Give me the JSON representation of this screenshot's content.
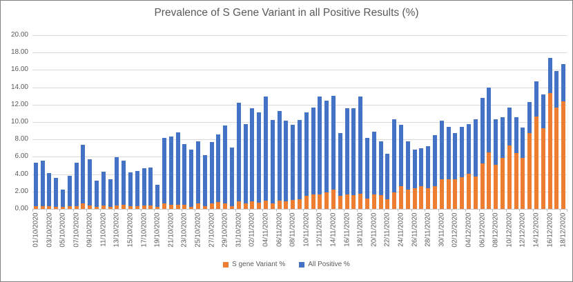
{
  "chart_data": {
    "type": "bar",
    "title": "Prevalence of S Gene Variant in all Positive Results (%)",
    "ylim": [
      0,
      20
    ],
    "y_tick_step": 2,
    "y_tick_labels": [
      "0.00",
      "2.00",
      "4.00",
      "6.00",
      "8.00",
      "10.00",
      "12.00",
      "14.00",
      "16.00",
      "18.00",
      "20.00"
    ],
    "x_label_interval": 2,
    "grid": true,
    "legend_position": "bottom",
    "bar_style": "S gene Variant % drawn in front of All Positive % (100% overlap)",
    "categories": [
      "01/10/2020",
      "02/10/2020",
      "03/10/2020",
      "04/10/2020",
      "05/10/2020",
      "06/10/2020",
      "07/10/2020",
      "08/10/2020",
      "09/10/2020",
      "10/10/2020",
      "11/10/2020",
      "12/10/2020",
      "13/10/2020",
      "14/10/2020",
      "15/10/2020",
      "16/10/2020",
      "17/10/2020",
      "18/10/2020",
      "19/10/2020",
      "20/10/2020",
      "21/10/2020",
      "22/10/2020",
      "23/10/2020",
      "24/10/2020",
      "25/10/2020",
      "26/10/2020",
      "27/10/2020",
      "28/10/2020",
      "29/10/2020",
      "30/10/2020",
      "31/10/2020",
      "01/11/2020",
      "02/11/2020",
      "03/11/2020",
      "04/11/2020",
      "05/11/2020",
      "06/11/2020",
      "07/11/2020",
      "08/11/2020",
      "09/11/2020",
      "10/11/2020",
      "11/11/2020",
      "12/11/2020",
      "13/11/2020",
      "14/11/2020",
      "15/11/2020",
      "16/11/2020",
      "17/11/2020",
      "18/11/2020",
      "19/11/2020",
      "20/11/2020",
      "21/11/2020",
      "22/11/2020",
      "23/11/2020",
      "24/11/2020",
      "25/11/2020",
      "26/11/2020",
      "27/11/2020",
      "28/11/2020",
      "29/11/2020",
      "30/11/2020",
      "01/12/2020",
      "02/12/2020",
      "03/12/2020",
      "04/12/2020",
      "05/12/2020",
      "06/12/2020",
      "07/12/2020",
      "08/12/2020",
      "09/12/2020",
      "10/12/2020",
      "11/12/2020",
      "12/12/2020",
      "13/12/2020",
      "14/12/2020",
      "15/12/2020",
      "16/12/2020",
      "17/12/2020",
      "18/12/2020"
    ],
    "series": [
      {
        "name": "S gene Variant %",
        "color": "#ED7D31",
        "values": [
          0.35,
          0.3,
          0.35,
          0.2,
          0.25,
          0.35,
          0.35,
          0.6,
          0.4,
          0.25,
          0.4,
          0.25,
          0.4,
          0.45,
          0.35,
          0.35,
          0.4,
          0.4,
          0.2,
          0.6,
          0.45,
          0.5,
          0.5,
          0.25,
          0.6,
          0.3,
          0.65,
          0.8,
          0.65,
          0.35,
          0.85,
          0.65,
          0.85,
          0.75,
          0.95,
          0.65,
          0.95,
          0.85,
          1.0,
          1.1,
          1.5,
          1.7,
          1.65,
          1.9,
          2.25,
          1.5,
          1.7,
          1.55,
          1.75,
          1.2,
          1.65,
          1.6,
          1.15,
          1.9,
          2.65,
          2.25,
          2.35,
          2.6,
          2.4,
          2.65,
          3.45,
          3.4,
          3.4,
          3.65,
          4.05,
          3.75,
          5.25,
          6.5,
          5.05,
          5.9,
          7.3,
          6.45,
          5.85,
          8.7,
          10.65,
          9.25,
          13.35,
          11.65,
          12.4
        ]
      },
      {
        "name": "All Positive %",
        "color": "#4472C4",
        "values": [
          5.3,
          5.55,
          4.1,
          3.6,
          2.25,
          3.85,
          5.3,
          7.35,
          5.75,
          3.25,
          4.25,
          3.45,
          5.95,
          5.55,
          4.2,
          4.35,
          4.7,
          4.8,
          2.75,
          8.15,
          8.35,
          8.8,
          7.5,
          6.85,
          7.8,
          6.2,
          7.7,
          8.55,
          9.6,
          7.05,
          12.25,
          9.8,
          11.55,
          11.15,
          12.9,
          10.2,
          11.3,
          10.15,
          9.7,
          10.25,
          11.15,
          11.65,
          12.9,
          12.5,
          13.05,
          8.75,
          11.6,
          11.6,
          12.95,
          8.2,
          8.9,
          7.8,
          6.35,
          10.3,
          9.7,
          7.8,
          6.8,
          6.95,
          7.25,
          8.5,
          10.15,
          9.45,
          8.7,
          9.45,
          9.75,
          10.3,
          12.8,
          14.0,
          10.35,
          10.55,
          11.7,
          10.55,
          9.4,
          12.3,
          14.65,
          13.2,
          17.4,
          15.85,
          16.65
        ]
      }
    ]
  },
  "legend": {
    "items": [
      {
        "label": "S gene Variant %",
        "color": "#ED7D31"
      },
      {
        "label": "All Positive %",
        "color": "#4472C4"
      }
    ]
  },
  "colors": {
    "s_gene": "#ED7D31",
    "all_positive": "#4472C4",
    "gridline": "#D9D9D9",
    "axis_text": "#595959",
    "title_text": "#595959",
    "border": "#808080"
  }
}
